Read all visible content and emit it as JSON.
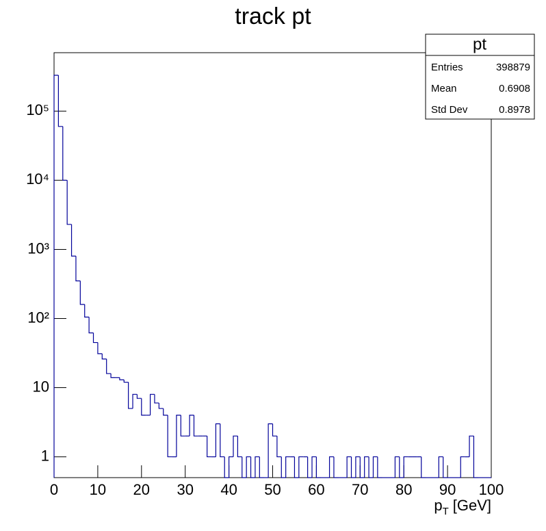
{
  "chart_data": {
    "type": "histogram",
    "title": "track pt",
    "xlabel": [
      "p",
      "T",
      "[GeV]"
    ],
    "bins": [
      0,
      1,
      2,
      3,
      4,
      5,
      6,
      7,
      8,
      9,
      10,
      11,
      12,
      13,
      14,
      15,
      16,
      17,
      18,
      19,
      20,
      21,
      22,
      23,
      24,
      25,
      26,
      27,
      28,
      29,
      30,
      31,
      32,
      33,
      34,
      35,
      36,
      37,
      38,
      39,
      40,
      41,
      42,
      43,
      44,
      45,
      46,
      47,
      48,
      49,
      50,
      51,
      52,
      53,
      54,
      55,
      56,
      57,
      58,
      59,
      60,
      61,
      62,
      63,
      64,
      65,
      66,
      67,
      68,
      69,
      70,
      71,
      72,
      73,
      74,
      75,
      76,
      77,
      78,
      79,
      80,
      81,
      82,
      83,
      84,
      85,
      86,
      87,
      88,
      89,
      90,
      91,
      92,
      93,
      94,
      95,
      96,
      97,
      98,
      99,
      100
    ],
    "values": [
      330000,
      60000,
      10000,
      2300,
      800,
      350,
      160,
      105,
      62,
      45,
      31,
      26,
      16,
      14,
      14,
      13,
      12,
      5,
      8,
      7,
      4,
      4,
      8,
      6,
      5,
      4,
      1,
      1,
      4,
      2,
      2,
      4,
      2,
      2,
      2,
      1,
      1,
      3,
      1,
      0,
      1,
      2,
      1,
      0,
      1,
      0,
      1,
      0,
      0,
      3,
      2,
      1,
      0,
      1,
      1,
      0,
      1,
      1,
      0,
      1,
      0,
      0,
      0,
      1,
      0,
      0,
      0,
      1,
      0,
      1,
      0,
      1,
      0,
      1,
      0,
      0,
      0,
      0,
      1,
      0,
      1,
      1,
      1,
      1,
      0,
      0,
      0,
      0,
      1,
      0,
      0,
      0,
      0,
      1,
      1,
      2,
      0,
      0,
      0,
      0
    ],
    "color": "#000099",
    "log_y": true,
    "xlim": [
      0,
      100
    ],
    "xticks": [
      0,
      10,
      20,
      30,
      40,
      50,
      60,
      70,
      80,
      90,
      100
    ],
    "ylim": [
      0.5,
      700000
    ],
    "yticks": [
      1,
      10,
      {
        "value": 100,
        "label": "10²"
      },
      {
        "value": 1000,
        "label": "10³"
      },
      {
        "value": 10000,
        "label": "10⁴"
      },
      {
        "value": 100000,
        "label": "10⁵"
      }
    ],
    "stats": {
      "title": "pt",
      "rows": [
        {
          "label": "Entries",
          "value": 398879
        },
        {
          "label": "Mean",
          "value": 0.6908
        },
        {
          "label": "Std Dev",
          "value": 0.8978
        }
      ]
    }
  }
}
